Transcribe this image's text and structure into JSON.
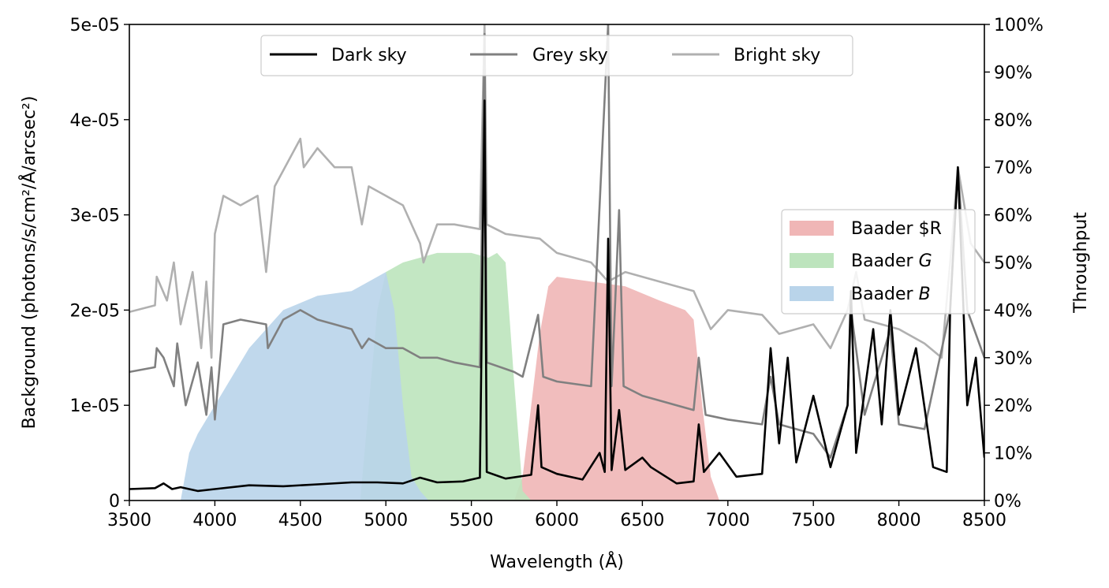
{
  "chart_data": {
    "type": "line",
    "xlabel": "Wavelength (Å)",
    "ylabel": "Background (photons/s/cm²/Å/arcsec²)",
    "y2label": "Throughput",
    "xlim": [
      3500,
      8500
    ],
    "ylim": [
      0,
      5e-05
    ],
    "y2lim": [
      0,
      100
    ],
    "x_ticks": [
      3500,
      4000,
      4500,
      5000,
      5500,
      6000,
      6500,
      7000,
      7500,
      8000,
      8500
    ],
    "y_ticks": [
      0,
      1e-05,
      2e-05,
      3e-05,
      4e-05,
      5e-05
    ],
    "y_tick_labels": [
      "0",
      "1e-05",
      "2e-05",
      "3e-05",
      "4e-05",
      "5e-05"
    ],
    "y2_ticks": [
      0,
      10,
      20,
      30,
      40,
      50,
      60,
      70,
      80,
      90,
      100
    ],
    "y2_tick_labels": [
      "0%",
      "10%",
      "20%",
      "30%",
      "40%",
      "50%",
      "60%",
      "70%",
      "80%",
      "90%",
      "100%"
    ],
    "grid": false,
    "legend_lines_placement": "upper-center",
    "legend_filters_placement": "center-right",
    "series": [
      {
        "name": "Dark sky",
        "color": "#000000",
        "points": [
          [
            3500,
            1.2e-06
          ],
          [
            3650,
            1.3e-06
          ],
          [
            3700,
            1.8e-06
          ],
          [
            3750,
            1.2e-06
          ],
          [
            3800,
            1.4e-06
          ],
          [
            3900,
            1e-06
          ],
          [
            4000,
            1.2e-06
          ],
          [
            4200,
            1.6e-06
          ],
          [
            4400,
            1.5e-06
          ],
          [
            4600,
            1.7e-06
          ],
          [
            4800,
            1.9e-06
          ],
          [
            4950,
            1.9e-06
          ],
          [
            5100,
            1.8e-06
          ],
          [
            5200,
            2.4e-06
          ],
          [
            5300,
            1.9e-06
          ],
          [
            5450,
            2e-06
          ],
          [
            5550,
            2.4e-06
          ],
          [
            5577,
            4.2e-05
          ],
          [
            5590,
            3e-06
          ],
          [
            5700,
            2.3e-06
          ],
          [
            5850,
            2.7e-06
          ],
          [
            5890,
            1e-05
          ],
          [
            5910,
            3.5e-06
          ],
          [
            6000,
            2.8e-06
          ],
          [
            6150,
            2.2e-06
          ],
          [
            6250,
            5e-06
          ],
          [
            6280,
            3e-06
          ],
          [
            6300,
            2.75e-05
          ],
          [
            6320,
            3.2e-06
          ],
          [
            6364,
            9.5e-06
          ],
          [
            6400,
            3.2e-06
          ],
          [
            6500,
            4.5e-06
          ],
          [
            6550,
            3.5e-06
          ],
          [
            6700,
            1.8e-06
          ],
          [
            6800,
            2e-06
          ],
          [
            6830,
            8e-06
          ],
          [
            6860,
            3e-06
          ],
          [
            6950,
            5e-06
          ],
          [
            7050,
            2.5e-06
          ],
          [
            7200,
            2.8e-06
          ],
          [
            7250,
            1.6e-05
          ],
          [
            7300,
            6e-06
          ],
          [
            7350,
            1.5e-05
          ],
          [
            7400,
            4e-06
          ],
          [
            7500,
            1.1e-05
          ],
          [
            7600,
            3.5e-06
          ],
          [
            7700,
            1e-05
          ],
          [
            7720,
            2.2e-05
          ],
          [
            7750,
            5e-06
          ],
          [
            7850,
            1.8e-05
          ],
          [
            7900,
            8e-06
          ],
          [
            7950,
            2e-05
          ],
          [
            8000,
            9e-06
          ],
          [
            8100,
            1.6e-05
          ],
          [
            8200,
            3.5e-06
          ],
          [
            8280,
            3e-06
          ],
          [
            8300,
            2e-05
          ],
          [
            8345,
            3.5e-05
          ],
          [
            8400,
            1e-05
          ],
          [
            8450,
            1.5e-05
          ],
          [
            8500,
            4.5e-06
          ]
        ]
      },
      {
        "name": "Grey sky",
        "color": "#808080",
        "points": [
          [
            3500,
            1.35e-05
          ],
          [
            3650,
            1.4e-05
          ],
          [
            3660,
            1.6e-05
          ],
          [
            3700,
            1.5e-05
          ],
          [
            3760,
            1.2e-05
          ],
          [
            3780,
            1.65e-05
          ],
          [
            3830,
            1e-05
          ],
          [
            3900,
            1.45e-05
          ],
          [
            3950,
            9e-06
          ],
          [
            3980,
            1.4e-05
          ],
          [
            4000,
            8.5e-06
          ],
          [
            4050,
            1.85e-05
          ],
          [
            4150,
            1.9e-05
          ],
          [
            4300,
            1.85e-05
          ],
          [
            4310,
            1.6e-05
          ],
          [
            4400,
            1.9e-05
          ],
          [
            4500,
            2e-05
          ],
          [
            4600,
            1.9e-05
          ],
          [
            4700,
            1.85e-05
          ],
          [
            4800,
            1.8e-05
          ],
          [
            4860,
            1.6e-05
          ],
          [
            4900,
            1.7e-05
          ],
          [
            5000,
            1.6e-05
          ],
          [
            5100,
            1.6e-05
          ],
          [
            5200,
            1.5e-05
          ],
          [
            5300,
            1.5e-05
          ],
          [
            5400,
            1.45e-05
          ],
          [
            5550,
            1.4e-05
          ],
          [
            5577,
            4.9e-05
          ],
          [
            5590,
            1.45e-05
          ],
          [
            5750,
            1.35e-05
          ],
          [
            5800,
            1.3e-05
          ],
          [
            5890,
            1.95e-05
          ],
          [
            5920,
            1.3e-05
          ],
          [
            6000,
            1.25e-05
          ],
          [
            6200,
            1.2e-05
          ],
          [
            6300,
            5e-05
          ],
          [
            6320,
            1.2e-05
          ],
          [
            6364,
            3.05e-05
          ],
          [
            6390,
            1.2e-05
          ],
          [
            6500,
            1.1e-05
          ],
          [
            6700,
            1e-05
          ],
          [
            6800,
            9.5e-06
          ],
          [
            6830,
            1.5e-05
          ],
          [
            6870,
            9e-06
          ],
          [
            7000,
            8.5e-06
          ],
          [
            7200,
            8e-06
          ],
          [
            7250,
            1.3e-05
          ],
          [
            7300,
            8e-06
          ],
          [
            7500,
            7e-06
          ],
          [
            7600,
            4.5e-06
          ],
          [
            7700,
            1e-05
          ],
          [
            7720,
            2e-05
          ],
          [
            7800,
            9e-06
          ],
          [
            7950,
            1.8e-05
          ],
          [
            8000,
            8e-06
          ],
          [
            8150,
            7.5e-06
          ],
          [
            8300,
            2e-05
          ],
          [
            8345,
            3.5e-05
          ],
          [
            8400,
            2e-05
          ],
          [
            8500,
            1.5e-05
          ]
        ]
      },
      {
        "name": "Bright sky",
        "color": "#b0b0b0",
        "points": [
          [
            3500,
            1.98e-05
          ],
          [
            3650,
            2.05e-05
          ],
          [
            3660,
            2.35e-05
          ],
          [
            3720,
            2.1e-05
          ],
          [
            3760,
            2.5e-05
          ],
          [
            3800,
            1.85e-05
          ],
          [
            3870,
            2.4e-05
          ],
          [
            3920,
            1.6e-05
          ],
          [
            3950,
            2.3e-05
          ],
          [
            3980,
            1.5e-05
          ],
          [
            4000,
            2.8e-05
          ],
          [
            4050,
            3.2e-05
          ],
          [
            4150,
            3.1e-05
          ],
          [
            4250,
            3.2e-05
          ],
          [
            4300,
            2.4e-05
          ],
          [
            4350,
            3.3e-05
          ],
          [
            4500,
            3.8e-05
          ],
          [
            4520,
            3.5e-05
          ],
          [
            4600,
            3.7e-05
          ],
          [
            4700,
            3.5e-05
          ],
          [
            4800,
            3.5e-05
          ],
          [
            4860,
            2.9e-05
          ],
          [
            4900,
            3.3e-05
          ],
          [
            5000,
            3.2e-05
          ],
          [
            5100,
            3.1e-05
          ],
          [
            5200,
            2.7e-05
          ],
          [
            5220,
            2.5e-05
          ],
          [
            5300,
            2.9e-05
          ],
          [
            5400,
            2.9e-05
          ],
          [
            5550,
            2.85e-05
          ],
          [
            5577,
            5e-05
          ],
          [
            5590,
            2.9e-05
          ],
          [
            5700,
            2.8e-05
          ],
          [
            5900,
            2.75e-05
          ],
          [
            6000,
            2.6e-05
          ],
          [
            6200,
            2.5e-05
          ],
          [
            6300,
            2.3e-05
          ],
          [
            6400,
            2.4e-05
          ],
          [
            6600,
            2.3e-05
          ],
          [
            6800,
            2.2e-05
          ],
          [
            6900,
            1.8e-05
          ],
          [
            7000,
            2e-05
          ],
          [
            7200,
            1.95e-05
          ],
          [
            7300,
            1.75e-05
          ],
          [
            7500,
            1.85e-05
          ],
          [
            7600,
            1.6e-05
          ],
          [
            7700,
            2e-05
          ],
          [
            7750,
            2.4e-05
          ],
          [
            7800,
            1.9e-05
          ],
          [
            8000,
            1.8e-05
          ],
          [
            8150,
            1.65e-05
          ],
          [
            8250,
            1.5e-05
          ],
          [
            8300,
            2.5e-05
          ],
          [
            8345,
            3.5e-05
          ],
          [
            8420,
            2.7e-05
          ],
          [
            8500,
            2.5e-05
          ]
        ]
      }
    ],
    "filters": [
      {
        "name": "Baader $R",
        "color": "#f0b6b6",
        "points": [
          [
            5750,
            0
          ],
          [
            5800,
            5
          ],
          [
            5850,
            20
          ],
          [
            5900,
            35
          ],
          [
            5950,
            45
          ],
          [
            6000,
            47
          ],
          [
            6200,
            46
          ],
          [
            6400,
            45
          ],
          [
            6600,
            42
          ],
          [
            6750,
            40
          ],
          [
            6800,
            38
          ],
          [
            6850,
            20
          ],
          [
            6900,
            5
          ],
          [
            6950,
            0
          ]
        ]
      },
      {
        "name": "Baader G",
        "color": "#bde4bd",
        "points": [
          [
            4850,
            0
          ],
          [
            4900,
            20
          ],
          [
            4950,
            40
          ],
          [
            5000,
            48
          ],
          [
            5100,
            50
          ],
          [
            5300,
            52
          ],
          [
            5500,
            52
          ],
          [
            5600,
            51
          ],
          [
            5650,
            52
          ],
          [
            5700,
            50
          ],
          [
            5750,
            25
          ],
          [
            5800,
            2
          ],
          [
            5850,
            0
          ]
        ]
      },
      {
        "name": "Baader B",
        "color": "#b9d4ea",
        "points": [
          [
            3800,
            0
          ],
          [
            3850,
            10
          ],
          [
            3900,
            14
          ],
          [
            4000,
            20
          ],
          [
            4200,
            32
          ],
          [
            4400,
            40
          ],
          [
            4600,
            43
          ],
          [
            4800,
            44
          ],
          [
            4900,
            46
          ],
          [
            5000,
            48
          ],
          [
            5050,
            40
          ],
          [
            5100,
            20
          ],
          [
            5150,
            5
          ],
          [
            5200,
            2
          ],
          [
            5250,
            0
          ]
        ]
      }
    ]
  }
}
